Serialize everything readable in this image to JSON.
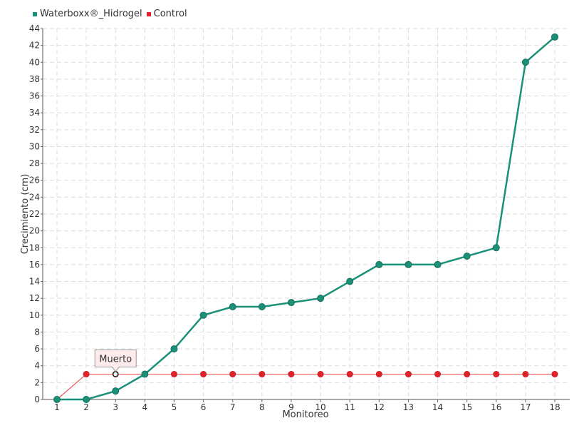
{
  "chart_data": {
    "type": "line",
    "title": "",
    "xlabel": "Monitoreo",
    "ylabel": "Crecimiento (cm)",
    "categories": [
      "1",
      "2",
      "3",
      "4",
      "5",
      "6",
      "7",
      "8",
      "9",
      "10",
      "11",
      "12",
      "13",
      "14",
      "15",
      "16",
      "17",
      "18"
    ],
    "ylim": [
      0,
      44
    ],
    "ytick_step": 2,
    "grid": true,
    "legend_position": "top-left",
    "series": [
      {
        "name": "Waterboxx®_Hidrogel",
        "color": "#1a9079",
        "values": [
          0,
          0,
          1,
          3,
          6,
          10,
          11,
          11,
          11.5,
          12,
          14,
          16,
          16,
          16,
          17,
          18,
          40,
          43
        ]
      },
      {
        "name": "Control",
        "color": "#e8202a",
        "values": [
          0,
          3,
          3,
          3,
          3,
          3,
          3,
          3,
          3,
          3,
          3,
          3,
          3,
          3,
          3,
          3,
          3,
          3
        ]
      }
    ],
    "annotation": {
      "text": "Muerto",
      "series_index": 1,
      "point_index": 2
    }
  }
}
